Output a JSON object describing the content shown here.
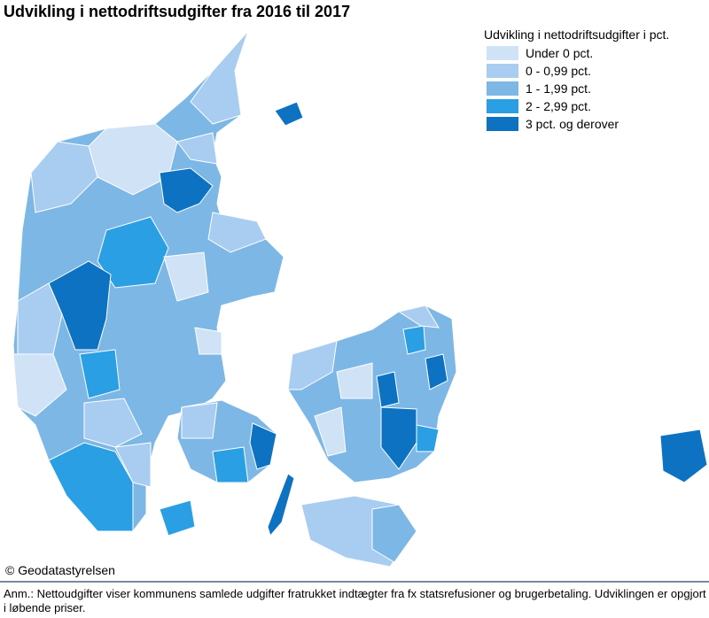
{
  "title": "Udvikling i nettodriftsudgifter fra 2016 til 2017",
  "legend": {
    "title": "Udvikling i nettodriftsudgifter i pct.",
    "classes": [
      {
        "label": "Under 0 pct.",
        "color": "#cfe2f6"
      },
      {
        "label": "0 - 0,99 pct.",
        "color": "#a9cdf0"
      },
      {
        "label": "1 - 1,99 pct.",
        "color": "#7db7e6"
      },
      {
        "label": "2 - 2,99 pct.",
        "color": "#2a9fe4"
      },
      {
        "label": "3 pct. og derover",
        "color": "#0c72c1"
      }
    ]
  },
  "credit": "© Geodatastyrelsen",
  "note": "Anm.: Nettoudgifter viser kommunens samlede udgifter fratrukket indtægter fra fx statsrefusioner og brugerbetaling. Udviklingen er opgjort i løbende priser."
}
